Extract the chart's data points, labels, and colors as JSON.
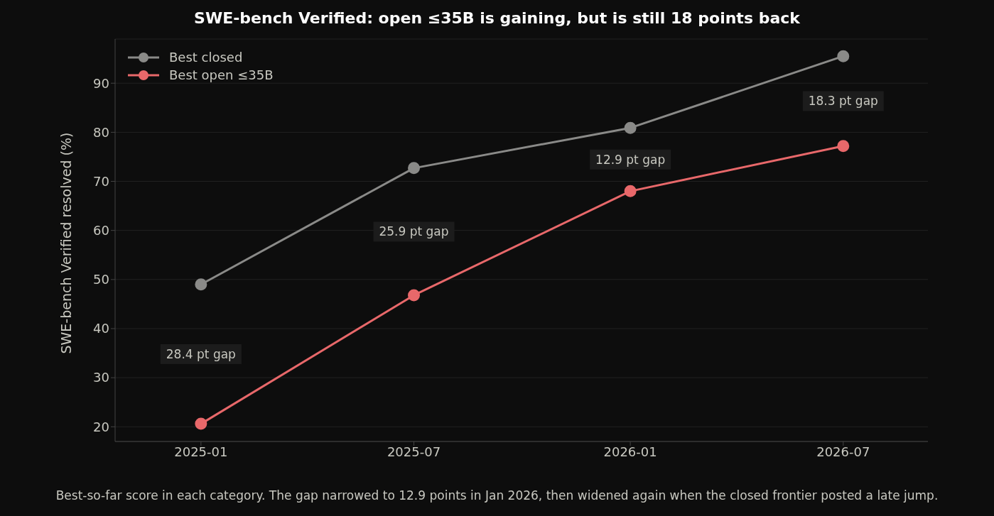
{
  "chart_data": {
    "type": "line",
    "title": "SWE-bench Verified: open ≤35B is gaining, but is still 18 points back",
    "ylabel": "SWE-bench Verified resolved (%)",
    "x": [
      "2025-01",
      "2025-07",
      "2026-01",
      "2026-07"
    ],
    "series": [
      {
        "name": "Best closed",
        "color": "#8a8a88",
        "values": [
          49.0,
          72.7,
          80.9,
          95.5
        ]
      },
      {
        "name": "Best open ≤35B",
        "color": "#e8686a",
        "values": [
          20.6,
          46.8,
          68.0,
          77.2
        ]
      }
    ],
    "xlim": [
      "2024-10-20",
      "2026-09-11"
    ],
    "xticks": [
      "2025-01",
      "2025-07",
      "2026-01",
      "2026-07"
    ],
    "ylim": [
      17,
      99
    ],
    "yticks": [
      20,
      30,
      40,
      50,
      60,
      70,
      80,
      90
    ],
    "grid": "y",
    "legend": "top left",
    "marker": "circle",
    "line_style": "solid",
    "annotations": [
      "28.4 pt gap",
      "25.9 pt gap",
      "12.9 pt gap",
      "18.3 pt gap",
      "Best-so-far score in each category. The gap narrowed to 12.9 points in Jan 2026, then widened again when the closed frontier posted a late jump."
    ]
  }
}
